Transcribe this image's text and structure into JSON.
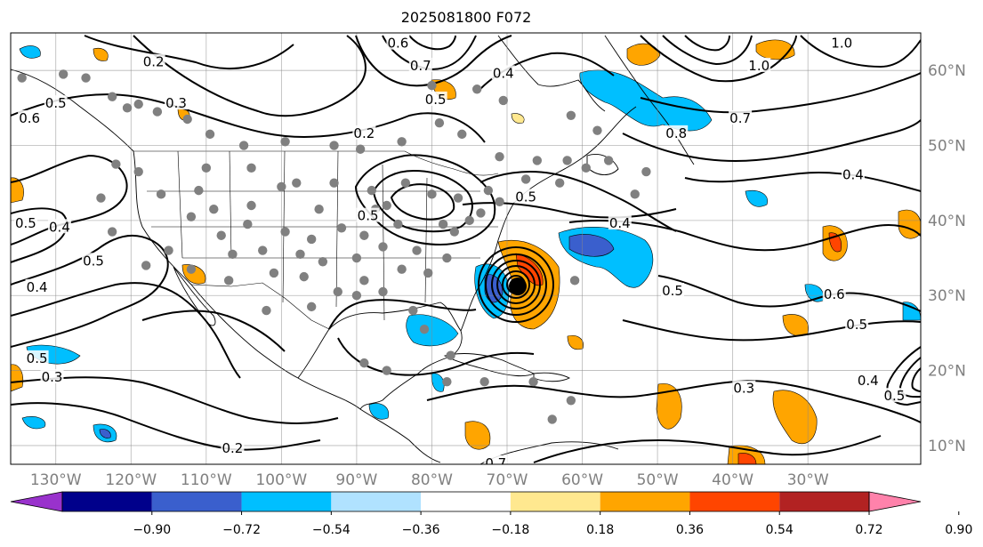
{
  "chart_data": {
    "type": "heatmap",
    "title": "2025081800 F072",
    "x_ticks": [
      "130°W",
      "120°W",
      "110°W",
      "100°W",
      "90°W",
      "80°W",
      "70°W",
      "60°W",
      "50°W",
      "40°W",
      "30°W"
    ],
    "x_values": [
      -130,
      -120,
      -110,
      -100,
      -90,
      -80,
      -70,
      -60,
      -50,
      -40,
      -30
    ],
    "y_ticks": [
      "60°N",
      "50°N",
      "40°N",
      "30°N",
      "20°N",
      "10°N"
    ],
    "y_values": [
      60,
      50,
      40,
      30,
      20,
      10
    ],
    "xlim": [
      -136,
      -15
    ],
    "ylim": [
      7.5,
      65
    ],
    "colorbar": {
      "tick_labels": [
        "−0.90",
        "−0.72",
        "−0.54",
        "−0.36",
        "−0.18",
        "0.18",
        "0.36",
        "0.54",
        "0.72",
        "0.90"
      ],
      "colors": [
        "#9932cc",
        "#00008b",
        "#3a5fcd",
        "#00bfff",
        "#b0e2ff",
        "#ffffff",
        "#ffe88f",
        "#ffa500",
        "#ff4500",
        "#b22222",
        "#ff82ab"
      ]
    },
    "contour_labels": [
      {
        "text": "0.2",
        "lon": -117,
        "lat": 61
      },
      {
        "text": "0.3",
        "lon": -114,
        "lat": 55.5
      },
      {
        "text": "0.2",
        "lon": -89,
        "lat": 51.5
      },
      {
        "text": "0.6",
        "lon": -84.5,
        "lat": 63.5
      },
      {
        "text": "0.7",
        "lon": -81.5,
        "lat": 60.5
      },
      {
        "text": "0.5",
        "lon": -79.5,
        "lat": 56
      },
      {
        "text": "0.4",
        "lon": -70.5,
        "lat": 59.5
      },
      {
        "text": "1.0",
        "lon": -25.5,
        "lat": 63.5
      },
      {
        "text": "1.0",
        "lon": -36.5,
        "lat": 60.5
      },
      {
        "text": "0.7",
        "lon": -39,
        "lat": 53.5
      },
      {
        "text": "0.8",
        "lon": -47.5,
        "lat": 51.5
      },
      {
        "text": "0.4",
        "lon": -24,
        "lat": 46
      },
      {
        "text": "0.5",
        "lon": -88.5,
        "lat": 40.5
      },
      {
        "text": "0.5",
        "lon": -67.5,
        "lat": 43
      },
      {
        "text": "0.4",
        "lon": -55,
        "lat": 39.5
      },
      {
        "text": "0.5",
        "lon": -130,
        "lat": 55.5
      },
      {
        "text": "0.6",
        "lon": -133.5,
        "lat": 53.5
      },
      {
        "text": "0.4",
        "lon": -129.5,
        "lat": 39
      },
      {
        "text": "0.5",
        "lon": -134,
        "lat": 39.5
      },
      {
        "text": "0.5",
        "lon": -125,
        "lat": 34.5
      },
      {
        "text": "0.4",
        "lon": -132.5,
        "lat": 31
      },
      {
        "text": "0.5",
        "lon": -48,
        "lat": 30.5
      },
      {
        "text": "0.6",
        "lon": -26.5,
        "lat": 30
      },
      {
        "text": "0.5",
        "lon": -23.5,
        "lat": 26
      },
      {
        "text": "0.5",
        "lon": -132.5,
        "lat": 21.5
      },
      {
        "text": "0.3",
        "lon": -130.5,
        "lat": 19
      },
      {
        "text": "0.2",
        "lon": -106.5,
        "lat": 9.5
      },
      {
        "text": "0.3",
        "lon": -38.5,
        "lat": 17.5
      },
      {
        "text": "0.4",
        "lon": -22,
        "lat": 18.5
      },
      {
        "text": "0.5",
        "lon": -18.5,
        "lat": 16.5
      },
      {
        "text": "0.7",
        "lon": -71.5,
        "lat": 7.5
      }
    ],
    "stations": [
      [
        -134.5,
        59
      ],
      [
        -129,
        59.5
      ],
      [
        -126,
        59
      ],
      [
        -122.5,
        56.5
      ],
      [
        -120.5,
        55
      ],
      [
        -119,
        55.5
      ],
      [
        -116.5,
        54.5
      ],
      [
        -112.5,
        53.5
      ],
      [
        -109.5,
        51.5
      ],
      [
        -105,
        50
      ],
      [
        -99.5,
        50.5
      ],
      [
        -93,
        50
      ],
      [
        -89.5,
        49.5
      ],
      [
        -84,
        50.5
      ],
      [
        -79,
        53
      ],
      [
        -80,
        58
      ],
      [
        -74,
        57.5
      ],
      [
        -70.5,
        56
      ],
      [
        -76,
        51.5
      ],
      [
        -71,
        48.5
      ],
      [
        -66,
        48
      ],
      [
        -62,
        48
      ],
      [
        -56.5,
        48
      ],
      [
        -51.5,
        46.5
      ],
      [
        -53,
        43.5
      ],
      [
        -63,
        45
      ],
      [
        -67.5,
        45.5
      ],
      [
        -72.5,
        44
      ],
      [
        -76.5,
        43
      ],
      [
        -80,
        43.5
      ],
      [
        -83.5,
        45
      ],
      [
        -86,
        42
      ],
      [
        -84.5,
        39.5
      ],
      [
        -89,
        38
      ],
      [
        -92,
        39
      ],
      [
        -96,
        37.5
      ],
      [
        -99.5,
        38.5
      ],
      [
        -104.5,
        39.5
      ],
      [
        -108,
        38
      ],
      [
        -112,
        40.5
      ],
      [
        -116,
        43.5
      ],
      [
        -119,
        46.5
      ],
      [
        -122,
        47.5
      ],
      [
        -124,
        43
      ],
      [
        -122.5,
        38.5
      ],
      [
        -118,
        34
      ],
      [
        -112,
        33.5
      ],
      [
        -107,
        32
      ],
      [
        -101,
        33
      ],
      [
        -97,
        32.5
      ],
      [
        -92.5,
        30.5
      ],
      [
        -90,
        30
      ],
      [
        -86.5,
        30.5
      ],
      [
        -82.5,
        28
      ],
      [
        -81,
        25.5
      ],
      [
        -80.5,
        33
      ],
      [
        -78,
        35
      ],
      [
        -77,
        38.5
      ],
      [
        -75,
        40
      ],
      [
        -73.5,
        41
      ],
      [
        -71,
        42.5
      ],
      [
        -86.5,
        36.5
      ],
      [
        -90,
        35
      ],
      [
        -94.5,
        34.5
      ],
      [
        -97.5,
        35.5
      ],
      [
        -102.5,
        36
      ],
      [
        -109,
        41.5
      ],
      [
        -115,
        36
      ],
      [
        -110,
        47
      ],
      [
        -104,
        47
      ],
      [
        -98,
        45
      ],
      [
        -93,
        45
      ],
      [
        -88,
        44
      ],
      [
        -104,
        42
      ],
      [
        -95,
        41.5
      ],
      [
        -89,
        32
      ],
      [
        -84,
        33.5
      ],
      [
        -78.5,
        39.5
      ],
      [
        -82,
        36
      ],
      [
        -96,
        28.5
      ],
      [
        -102,
        28
      ],
      [
        -77.5,
        22
      ],
      [
        -73,
        18.5
      ],
      [
        -66.5,
        18.5
      ],
      [
        -61.5,
        16
      ],
      [
        -64,
        13.5
      ],
      [
        -78,
        18.5
      ],
      [
        -86,
        20
      ],
      [
        -89,
        21
      ],
      [
        -61,
        32
      ],
      [
        -59.5,
        47
      ],
      [
        -58,
        52
      ],
      [
        -61.5,
        54
      ],
      [
        -106.5,
        35.5
      ],
      [
        -111,
        44
      ],
      [
        -100,
        44.5
      ],
      [
        -87.5,
        41.5
      ]
    ]
  }
}
